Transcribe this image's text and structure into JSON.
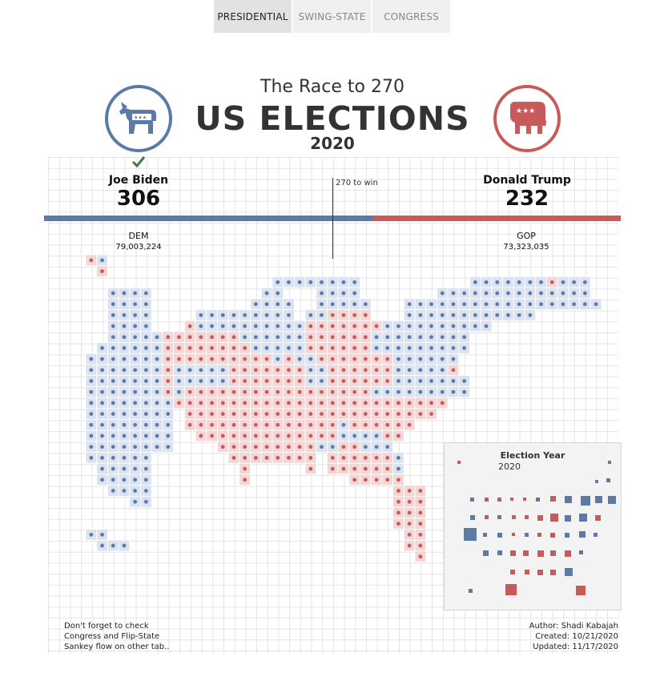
{
  "tabs": [
    {
      "label": "PRESIDENTIAL",
      "active": true
    },
    {
      "label": "SWING-STATE",
      "active": false
    },
    {
      "label": "CONGRESS",
      "active": false
    }
  ],
  "header": {
    "subtitle": "The Race to 270",
    "title": "US ELECTIONS",
    "year": "2020"
  },
  "candidates": {
    "dem": {
      "name": "Joe Biden",
      "electoral_votes": "306",
      "party": "DEM",
      "popular_vote": "79,003,224",
      "winner": true
    },
    "gop": {
      "name": "Donald Trump",
      "electoral_votes": "232",
      "party": "GOP",
      "popular_vote": "73,323,035",
      "winner": false
    }
  },
  "threshold_label": "270 to win",
  "colors": {
    "dem": "#5b7aa8",
    "gop": "#c95a5a",
    "dem_light": "#dbe3f0",
    "gop_light": "#f3d7d7"
  },
  "panel": {
    "title": "Election Year",
    "year": "2020"
  },
  "footer": {
    "left": [
      "Don't forget to check",
      "Congress and Flip-State",
      "Sankey flow on other tab.."
    ],
    "right": [
      "Author: Shadi Kabajah",
      "Created: 10/21/2020",
      "Updated: 11/17/2020"
    ]
  },
  "icons": {
    "dem_logo": "donkey-icon",
    "gop_logo": "elephant-icon",
    "winner": "checkmark-icon"
  }
}
